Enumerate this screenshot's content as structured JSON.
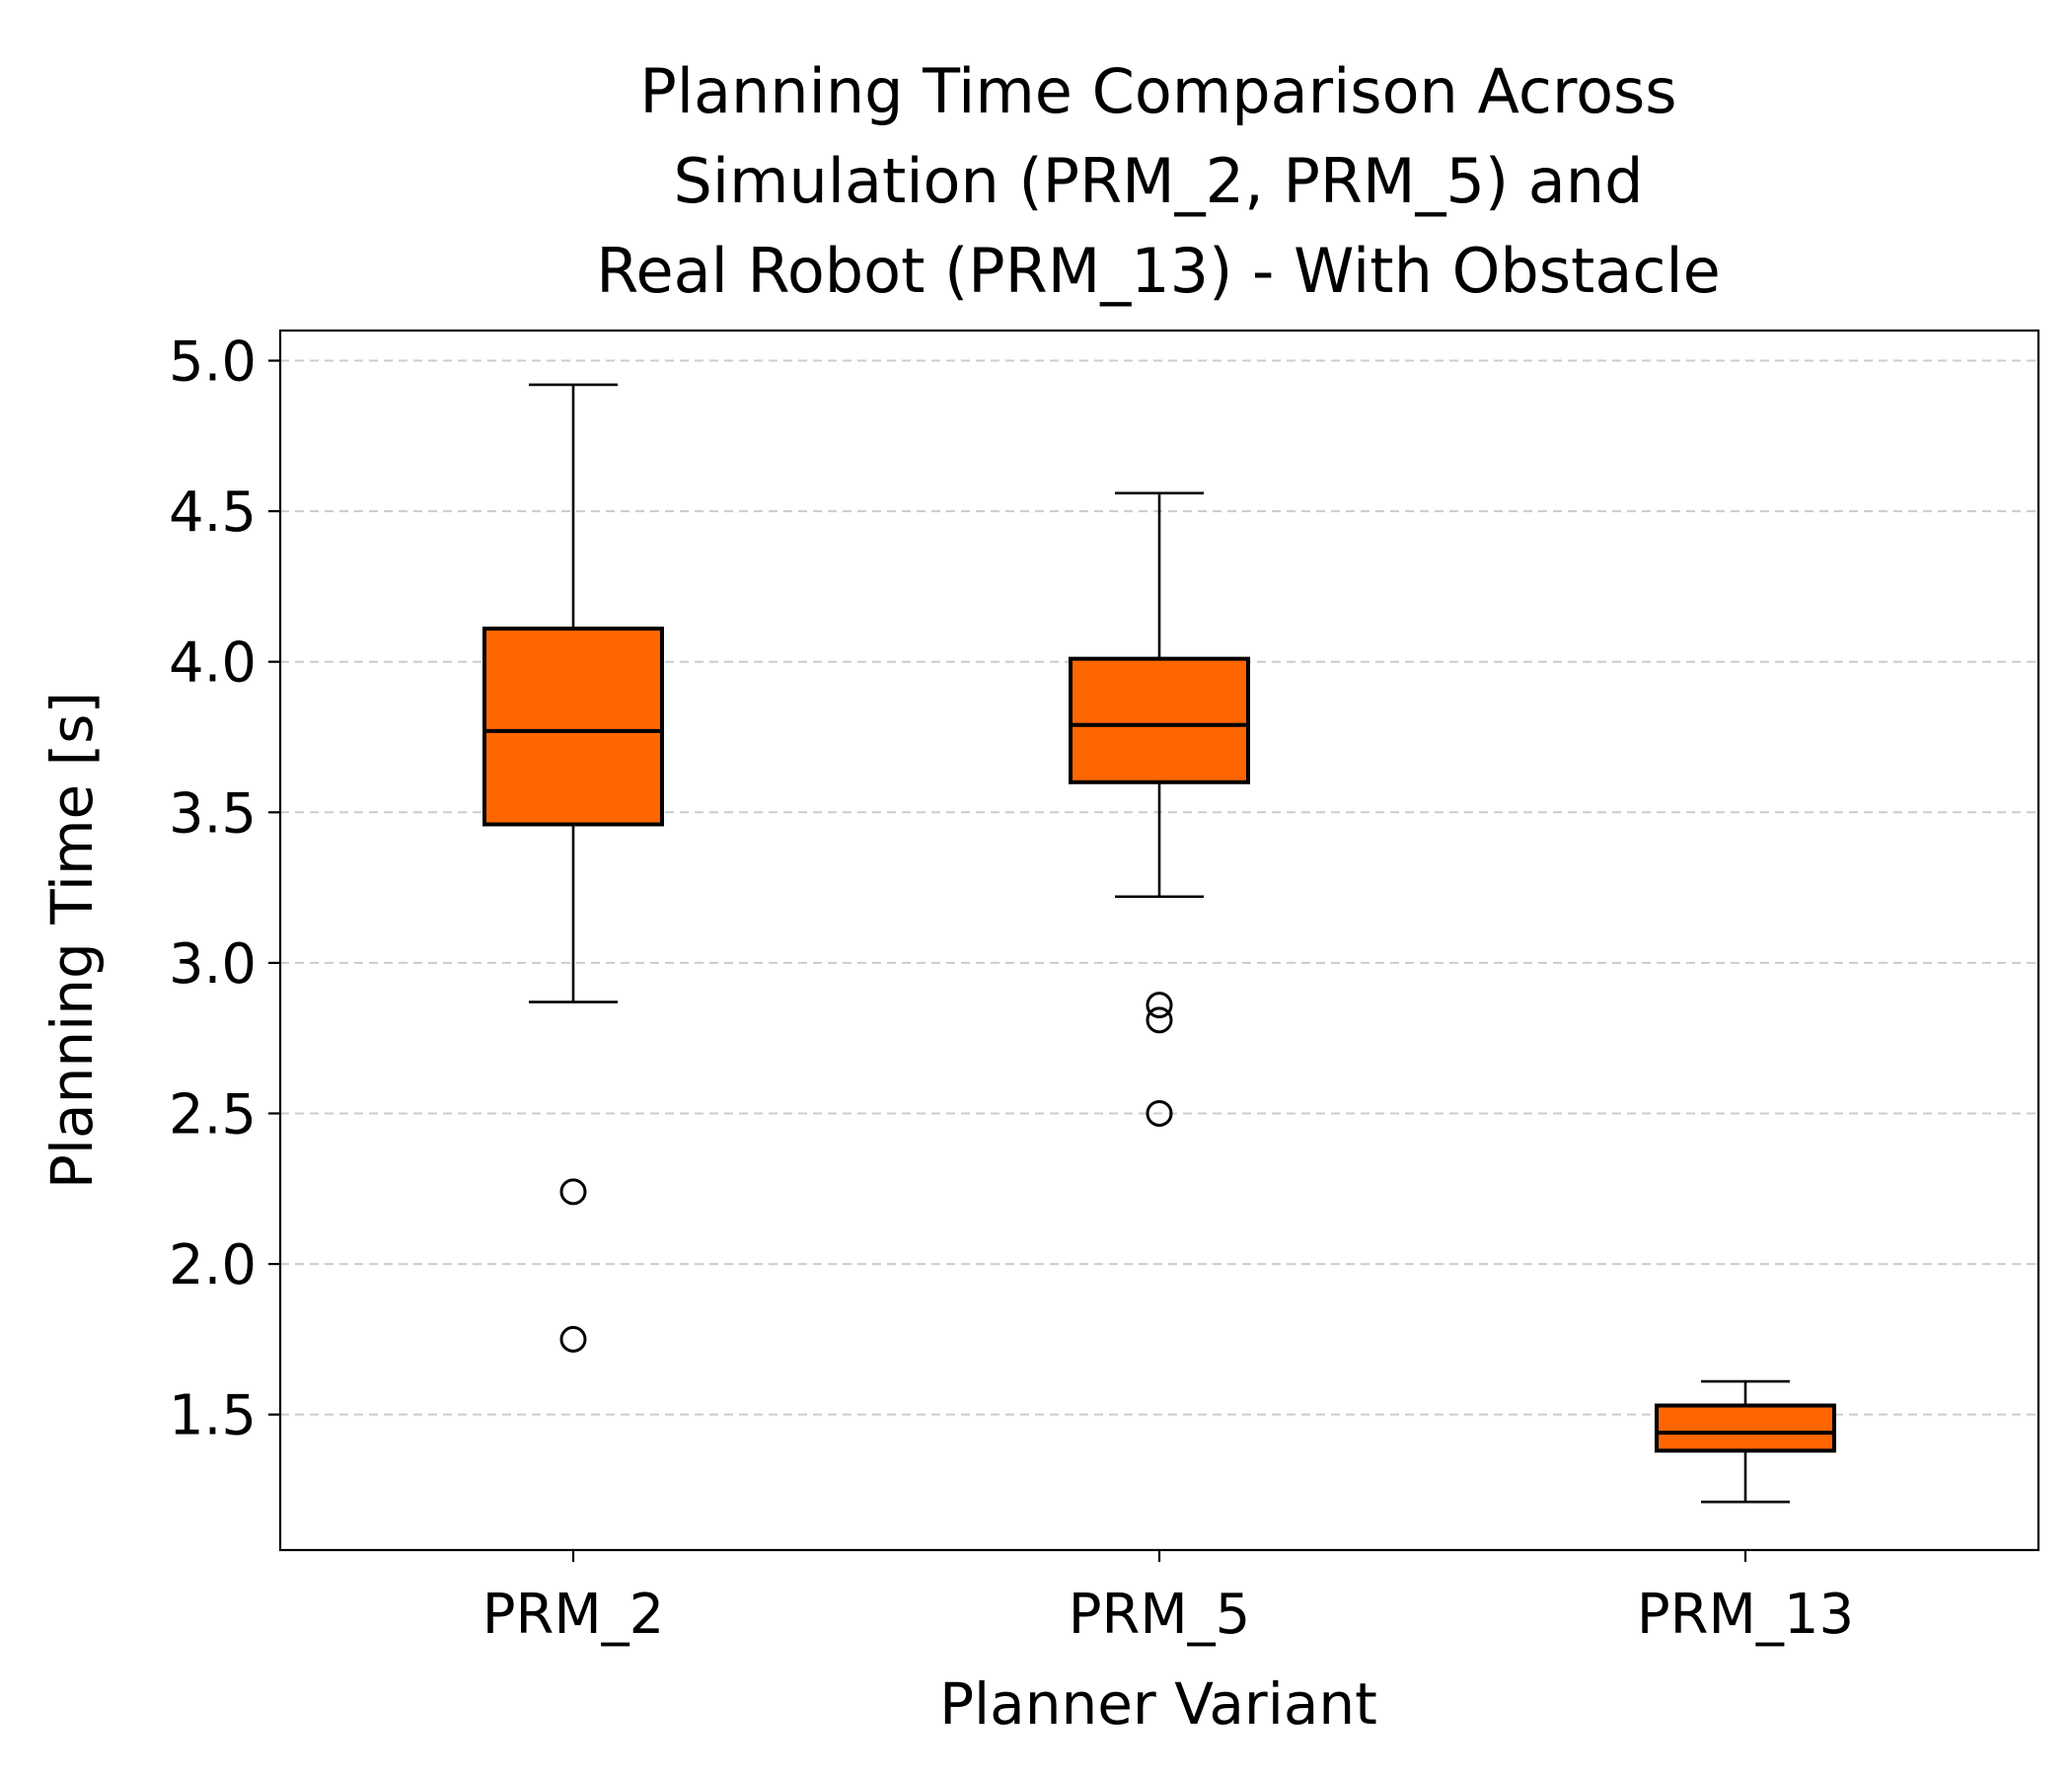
{
  "chart_data": {
    "type": "box",
    "title_lines": [
      "Planning Time Comparison Across",
      "Simulation (PRM_2, PRM_5) and",
      "Real Robot (PRM_13) - With Obstacle"
    ],
    "xlabel": "Planner Variant",
    "ylabel": "Planning Time [s]",
    "categories": [
      "PRM_2",
      "PRM_5",
      "PRM_13"
    ],
    "ylim": [
      1.05,
      5.1
    ],
    "yticks": [
      1.5,
      2.0,
      2.5,
      3.0,
      3.5,
      4.0,
      4.5,
      5.0
    ],
    "ytick_labels": [
      "1.5",
      "2.0",
      "2.5",
      "3.0",
      "3.5",
      "4.0",
      "4.5",
      "5.0"
    ],
    "grid": "y-dashed",
    "box_color": "#ff6600",
    "boxes": [
      {
        "category": "PRM_2",
        "whisker_low": 2.87,
        "q1": 3.46,
        "median": 3.77,
        "q3": 4.11,
        "whisker_high": 4.92,
        "outliers": [
          2.24,
          1.75
        ]
      },
      {
        "category": "PRM_5",
        "whisker_low": 3.22,
        "q1": 3.6,
        "median": 3.79,
        "q3": 4.01,
        "whisker_high": 4.56,
        "outliers": [
          2.86,
          2.81,
          2.5
        ]
      },
      {
        "category": "PRM_13",
        "whisker_low": 1.21,
        "q1": 1.38,
        "median": 1.44,
        "q3": 1.53,
        "whisker_high": 1.61,
        "outliers": []
      }
    ]
  }
}
